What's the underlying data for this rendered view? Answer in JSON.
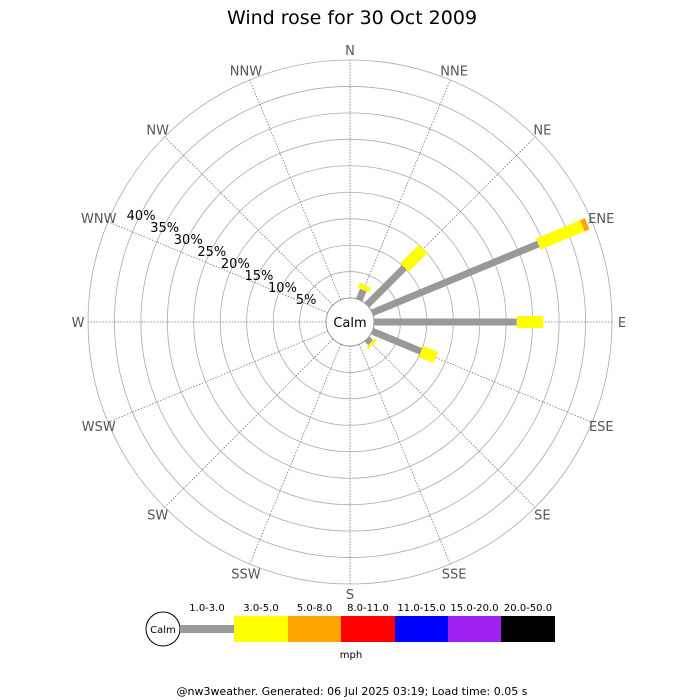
{
  "chart_data": {
    "type": "wind-rose",
    "title": "Wind rose for 30 Oct 2009",
    "directions": [
      "N",
      "NNE",
      "NE",
      "ENE",
      "E",
      "ESE",
      "SE",
      "SSE",
      "S",
      "SSW",
      "SW",
      "WSW",
      "W",
      "WNW",
      "NW",
      "NNW"
    ],
    "radial_ticks": [
      "5%",
      "10%",
      "15%",
      "20%",
      "25%",
      "30%",
      "35%",
      "40%"
    ],
    "radial_values": [
      5,
      10,
      15,
      20,
      25,
      30,
      35,
      40
    ],
    "radial_max": 45,
    "calm_label": "Calm",
    "speed_bins": [
      {
        "label": "1.0-3.0",
        "color": "#999999"
      },
      {
        "label": "3.0-5.0",
        "color": "#ffff00"
      },
      {
        "label": "5.0-8.0",
        "color": "#ffa500"
      },
      {
        "label": "8.0-11.0",
        "color": "#ff0000"
      },
      {
        "label": "11.0-15.0",
        "color": "#0000ff"
      },
      {
        "label": "15.0-20.0",
        "color": "#a020f0"
      },
      {
        "label": "20.0-50.0",
        "color": "#000000"
      }
    ],
    "units": "mph",
    "series": [
      {
        "direction": "NNE",
        "segments": [
          2,
          1
        ]
      },
      {
        "direction": "NE",
        "segments": [
          10,
          5
        ]
      },
      {
        "direction": "ENE",
        "segments": [
          34,
          9,
          1
        ]
      },
      {
        "direction": "E",
        "segments": [
          27,
          5
        ]
      },
      {
        "direction": "ESE",
        "segments": [
          10,
          3
        ]
      },
      {
        "direction": "SE",
        "segments": [
          1,
          0.5
        ]
      }
    ]
  },
  "footer": "@nw3weather. Generated: 06 Jul 2025 03:19; Load time: 0.05 s"
}
